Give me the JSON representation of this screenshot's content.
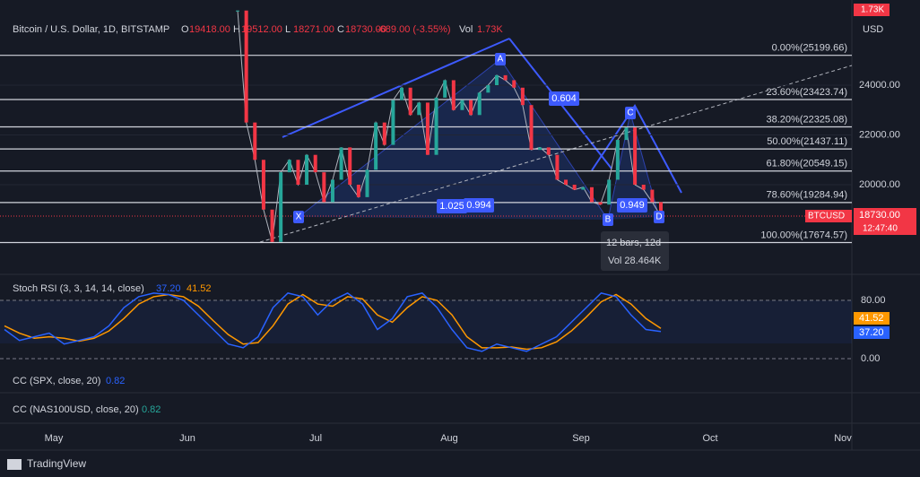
{
  "header": {
    "symbol": "Bitcoin / U.S. Dollar, 1D, BITSTAMP",
    "ohlc": [
      {
        "key": "O",
        "value": "19418.00"
      },
      {
        "key": "H",
        "value": "19512.00"
      },
      {
        "key": "L",
        "value": "18271.00"
      },
      {
        "key": "C",
        "value": "18730.00"
      }
    ],
    "change": "-689.00 (-3.55%)",
    "vol_label": "Vol",
    "vol": "1.73K"
  },
  "volume_badge": "1.73K",
  "currency": "USD",
  "price_ticks": [
    {
      "value": 24000,
      "label": "24000.00"
    },
    {
      "value": 22000,
      "label": "22000.00"
    },
    {
      "value": 20000,
      "label": "20000.00"
    }
  ],
  "fib_levels": [
    {
      "value": 25199.66,
      "label": "0.00%(25199.66)"
    },
    {
      "value": 23423.74,
      "label": "23.60%(23423.74)"
    },
    {
      "value": 22325.08,
      "label": "38.20%(22325.08)"
    },
    {
      "value": 21437.11,
      "label": "50.00%(21437.11)"
    },
    {
      "value": 20549.15,
      "label": "61.80%(20549.15)"
    },
    {
      "value": 19284.94,
      "label": "78.60%(19284.94)"
    },
    {
      "value": 17674.57,
      "label": "100.00%(17674.57)"
    }
  ],
  "closes": [
    27000,
    22500,
    21000,
    19000,
    17700,
    20500,
    21000,
    20000,
    21200,
    20500,
    19300,
    20200,
    21500,
    20000,
    19500,
    20600,
    22500,
    21600,
    23400,
    23900,
    22800,
    23300,
    21200,
    23500,
    24200,
    23000,
    23400,
    22800,
    23700,
    24000,
    24400,
    24200,
    23900,
    23200,
    21400,
    21500,
    21200,
    20200,
    20000,
    19800,
    19900,
    19300,
    19200,
    20200,
    21800,
    22300,
    20000,
    19800,
    19300,
    18730
  ],
  "pattern": {
    "points": [
      "X",
      "A",
      "B",
      "C",
      "D"
    ],
    "ratios": [
      "0.604",
      "1.025",
      "0.994",
      "0.949"
    ]
  },
  "tooltip": {
    "bars": "12 bars, 12d",
    "vol": "Vol 28.464K"
  },
  "price_badge": {
    "symbol": "BTCUSD",
    "price": "18730.00",
    "timer": "12:47:40"
  },
  "stoch": {
    "title": "Stoch RSI (3, 3, 14, 14, close)",
    "k_label": "37.20",
    "d_label": "41.52",
    "ticks": [
      {
        "value": 80,
        "label": "80.00"
      },
      {
        "value": 0,
        "label": "0.00"
      }
    ],
    "k": [
      40,
      25,
      30,
      35,
      20,
      25,
      30,
      45,
      70,
      85,
      90,
      88,
      80,
      60,
      40,
      20,
      15,
      30,
      70,
      90,
      85,
      60,
      80,
      90,
      75,
      40,
      55,
      85,
      90,
      70,
      40,
      15,
      10,
      20,
      15,
      10,
      20,
      30,
      50,
      70,
      90,
      85,
      60,
      40,
      37.2
    ],
    "d": [
      45,
      35,
      28,
      30,
      28,
      24,
      28,
      38,
      55,
      75,
      85,
      88,
      85,
      72,
      52,
      33,
      20,
      22,
      45,
      75,
      88,
      75,
      72,
      85,
      82,
      60,
      50,
      70,
      85,
      80,
      60,
      30,
      15,
      15,
      16,
      13,
      15,
      23,
      38,
      57,
      78,
      88,
      75,
      55,
      41.52
    ]
  },
  "cc_spx": {
    "title": "CC (SPX, close, 20)",
    "value": "0.82"
  },
  "cc_nas": {
    "title": "CC (NAS100USD, close, 20)",
    "value": "0.82"
  },
  "months": [
    "May",
    "Jun",
    "Jul",
    "Aug",
    "Sep",
    "Oct",
    "Nov"
  ],
  "brand": "TradingView"
}
